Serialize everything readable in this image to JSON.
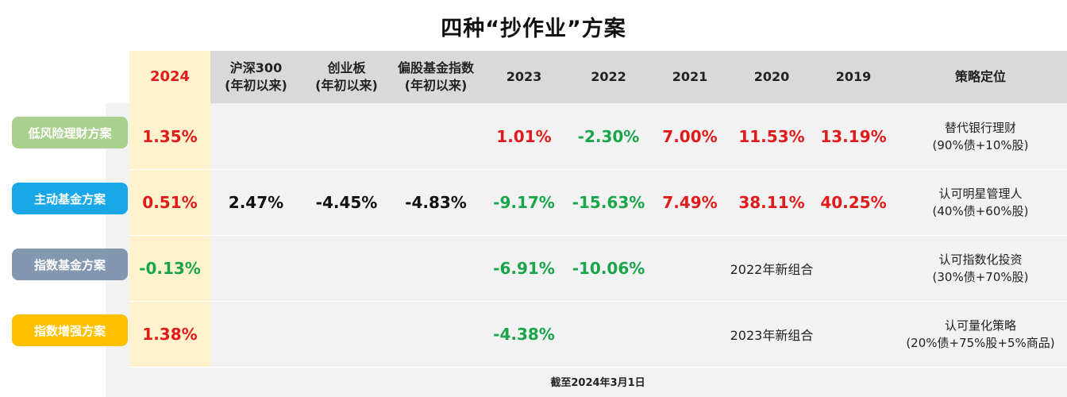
{
  "title": "四种“抄作业”方案",
  "header": {
    "col_2024": "2024",
    "hs300_line1": "沪深300",
    "hs300_line2": "(年初以来)",
    "cyb_line1": "创业板",
    "cyb_line2": "(年初以来)",
    "pgjj_line1": "偏股基金指数",
    "pgjj_line2": "(年初以来)",
    "col_2023": "2023",
    "col_2022": "2022",
    "col_2021": "2021",
    "col_2020": "2020",
    "col_2019": "2019",
    "strategy": "策略定位"
  },
  "rows": [
    {
      "label": "低风险理财方案",
      "color": "#a9d18e",
      "v2024": "1.35%",
      "v2023": "1.01%",
      "v2022": "-2.30%",
      "v2021": "7.00%",
      "v2020": "11.53%",
      "v2019": "13.19%",
      "strategy_line1": "替代银行理财",
      "strategy_line2": "(90%债+10%股)"
    },
    {
      "label": "主动基金方案",
      "color": "#1aa7e8",
      "v2024": "0.51%",
      "hs300": "2.47%",
      "cyb": "-4.45%",
      "pgjj": "-4.83%",
      "v2023": "-9.17%",
      "v2022": "-15.63%",
      "v2021": "7.49%",
      "v2020": "38.11%",
      "v2019": "40.25%",
      "strategy_line1": "认可明星管理人",
      "strategy_line2": "(40%债+60%股)"
    },
    {
      "label": "指数基金方案",
      "color": "#8497b0",
      "v2024": "-0.13%",
      "v2023": "-6.91%",
      "v2022": "-10.06%",
      "note": "2022年新组合",
      "strategy_line1": "认可指数化投资",
      "strategy_line2": "(30%债+70%股)"
    },
    {
      "label": "指数增强方案",
      "color": "#ffc000",
      "v2024": "1.38%",
      "v2023": "-4.38%",
      "note": "2023年新组合",
      "strategy_line1": "认可量化策略",
      "strategy_line2": "(20%债+75%股+5%商品)"
    }
  ],
  "footer": "截至2024年3月1日"
}
